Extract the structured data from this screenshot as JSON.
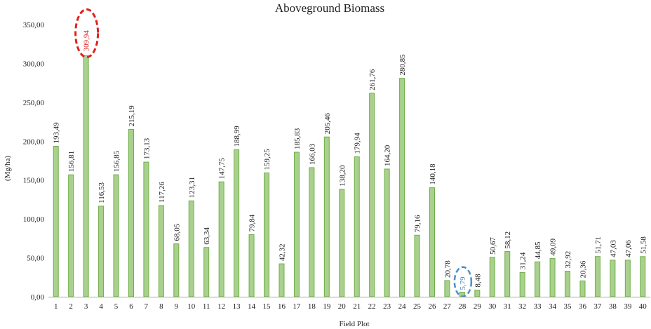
{
  "chart_data": {
    "type": "bar",
    "title": "Aboveground Biomass",
    "xlabel": "Field Plot",
    "ylabel": "(Mg/ha)",
    "ylim": [
      0,
      350
    ],
    "ytick_step": 50,
    "ytick_labels": [
      "0,00",
      "50,00",
      "100,00",
      "150,00",
      "200,00",
      "250,00",
      "300,00",
      "350,00"
    ],
    "grid": false,
    "legend": "none",
    "bar_color": "#a9d18e",
    "bar_edge_color": "#70ad47",
    "categories": [
      "1",
      "2",
      "3",
      "4",
      "5",
      "6",
      "7",
      "8",
      "9",
      "10",
      "11",
      "12",
      "13",
      "14",
      "15",
      "16",
      "17",
      "18",
      "19",
      "20",
      "21",
      "22",
      "23",
      "24",
      "25",
      "26",
      "27",
      "28",
      "29",
      "30",
      "31",
      "32",
      "33",
      "34",
      "35",
      "36",
      "37",
      "38",
      "39",
      "40"
    ],
    "values": [
      193.49,
      156.81,
      309.94,
      116.53,
      156.85,
      215.19,
      173.13,
      117.26,
      68.05,
      123.31,
      63.34,
      147.75,
      188.99,
      79.84,
      159.25,
      42.32,
      185.83,
      166.03,
      205.46,
      138.2,
      179.94,
      261.76,
      164.2,
      280.85,
      79.16,
      140.18,
      20.78,
      5.79,
      8.48,
      50.67,
      58.12,
      31.24,
      44.85,
      49.09,
      32.92,
      20.36,
      51.71,
      47.03,
      47.06,
      51.58
    ],
    "value_labels": [
      "193,49",
      "156,81",
      "309,94",
      "116,53",
      "156,85",
      "215,19",
      "173,13",
      "117,26",
      "68,05",
      "123,31",
      "63,34",
      "147,75",
      "188,99",
      "79,84",
      "159,25",
      "42,32",
      "185,83",
      "166,03",
      "205,46",
      "138,20",
      "179,94",
      "261,76",
      "164,20",
      "280,85",
      "79,16",
      "140,18",
      "20,78",
      "5,79",
      "8,48",
      "50,67",
      "58,12",
      "31,24",
      "44,85",
      "49,09",
      "32,92",
      "20,36",
      "51,71",
      "47,03",
      "47,06",
      "51,58"
    ],
    "annotations": [
      {
        "category": "3",
        "kind": "maximum",
        "color": "#e02020"
      },
      {
        "category": "28",
        "kind": "minimum",
        "color": "#4a90c8"
      }
    ]
  }
}
